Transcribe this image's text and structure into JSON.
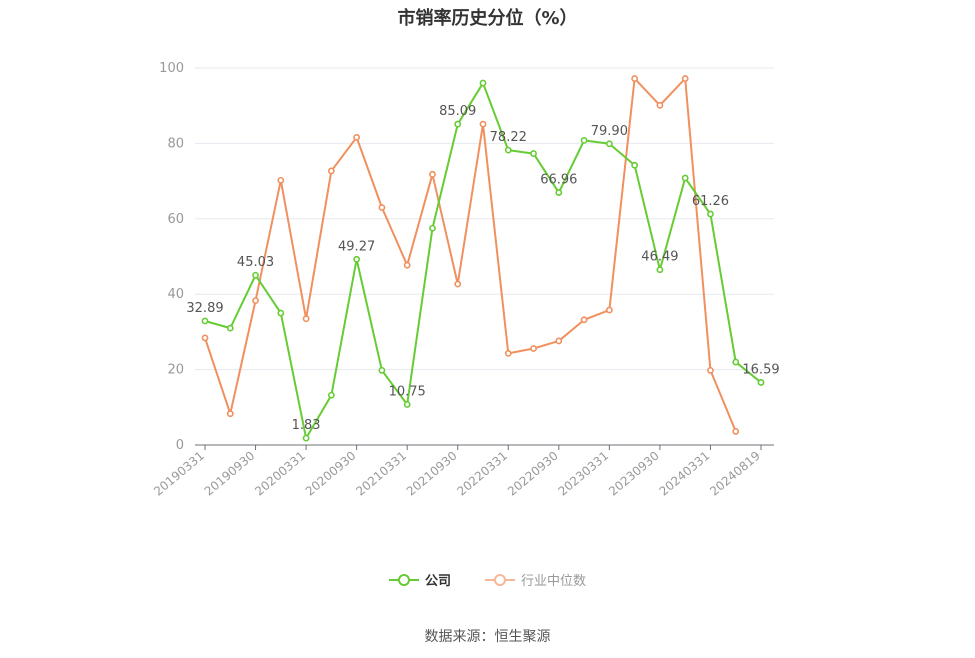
{
  "chart_data": {
    "type": "line",
    "title": "市销率历史分位（%）",
    "ylim": [
      0,
      100
    ],
    "yticks": [
      0,
      20,
      40,
      60,
      80,
      100
    ],
    "grid": true,
    "legend_placement": "bottom",
    "xtick_labels": [
      "20190331",
      "20190930",
      "20200331",
      "20200930",
      "20210331",
      "20210930",
      "20220331",
      "20220930",
      "20230331",
      "20230930",
      "20240331",
      "20240819"
    ],
    "x": [
      "20190331",
      "20190630",
      "20190930",
      "20191231",
      "20200331",
      "20200630",
      "20200930",
      "20201231",
      "20210331",
      "20210630",
      "20210930",
      "20211231",
      "20220331",
      "20220630",
      "20220930",
      "20221231",
      "20230331",
      "20230630",
      "20230930",
      "20231231",
      "20240331",
      "20240630",
      "20240819"
    ],
    "series": [
      {
        "name": "公司",
        "color": "#66cc33",
        "values": [
          32.89,
          31.0,
          45.03,
          35.0,
          1.83,
          13.2,
          49.27,
          19.8,
          10.75,
          57.5,
          85.09,
          96.0,
          78.22,
          77.3,
          66.96,
          80.8,
          79.9,
          74.2,
          46.49,
          70.8,
          61.26,
          22.0,
          16.59
        ],
        "labels": [
          "32.89",
          "",
          "45.03",
          "",
          "1.83",
          "",
          "49.27",
          "",
          "10.75",
          "",
          "85.09",
          "",
          "78.22",
          "",
          "66.96",
          "",
          "79.90",
          "",
          "46.49",
          "",
          "61.26",
          "",
          "16.59"
        ]
      },
      {
        "name": "行业中位数",
        "color": "#f0905e",
        "values": [
          28.4,
          8.3,
          38.3,
          70.2,
          33.5,
          72.7,
          81.6,
          63.0,
          47.7,
          71.8,
          42.7,
          85.1,
          24.3,
          25.6,
          27.6,
          33.2,
          35.8,
          97.2,
          90.1,
          97.2,
          19.8,
          3.6,
          null
        ],
        "labels": []
      }
    ]
  },
  "source_text": "数据来源：恒生聚源"
}
